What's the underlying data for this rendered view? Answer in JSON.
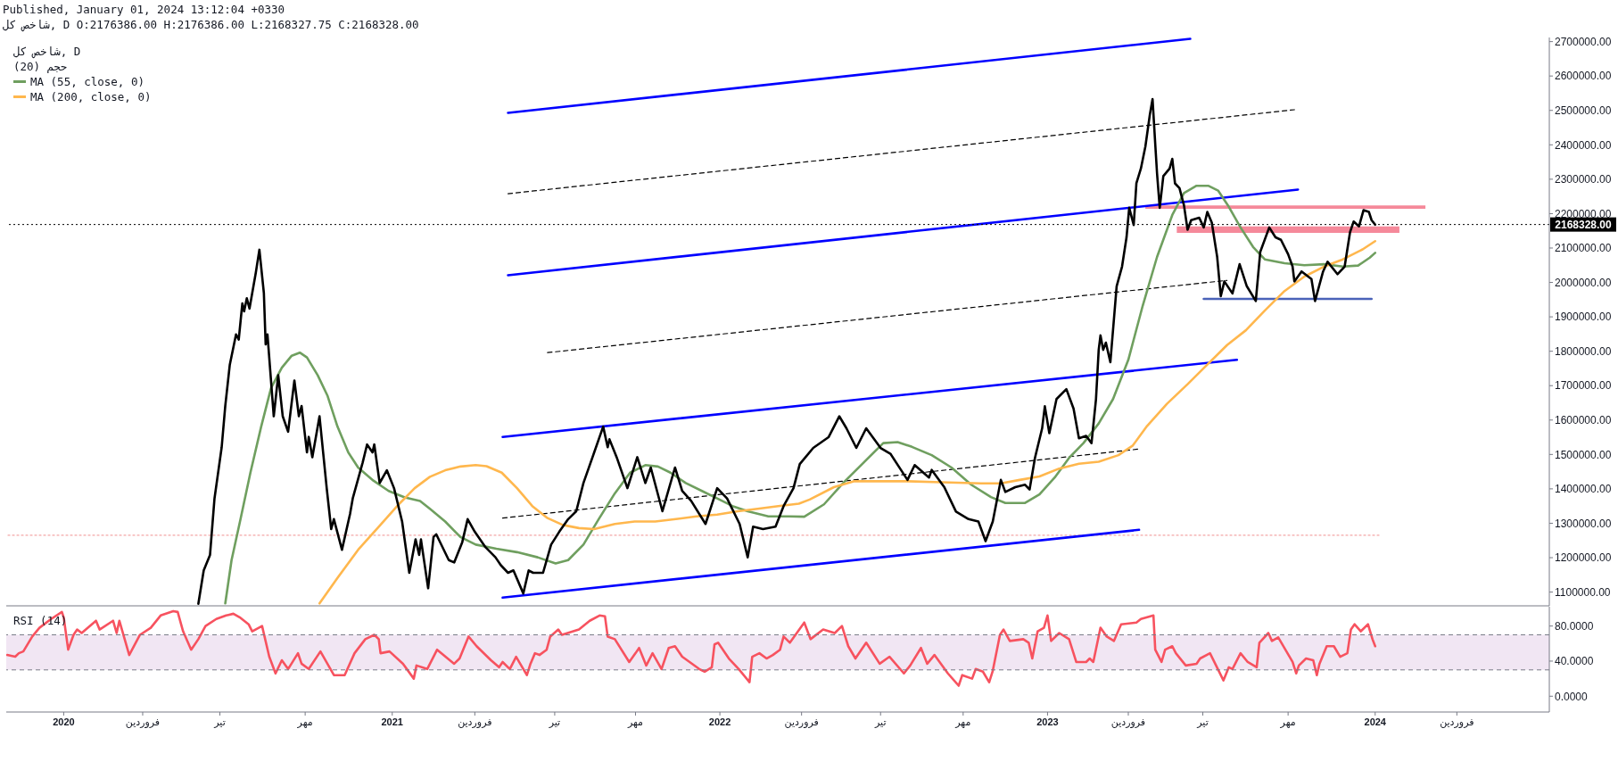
{
  "chart_data": [
    {
      "type": "line",
      "title": "شاخص کل, D",
      "subtitle": "شاخص کل, D O:2176386.00 H:2176386.00 L:2168327.75 C:2168328.00",
      "annotations": [
        "Published, January 01, 2024 13:12:04 +0330",
        "حجم (20)"
      ],
      "xlim": [
        "2019-10-29",
        "2024-07-13"
      ],
      "ylim": [
        1060000,
        2712000
      ],
      "yticks": [
        {
          "value": 1100000,
          "label": "1100000.00"
        },
        {
          "value": 1200000,
          "label": "1200000.00"
        },
        {
          "value": 1300000,
          "label": "1300000.00"
        },
        {
          "value": 1400000,
          "label": "1400000.00"
        },
        {
          "value": 1500000,
          "label": "1500000.00"
        },
        {
          "value": 1600000,
          "label": "1600000.00"
        },
        {
          "value": 1700000,
          "label": "1700000.00"
        },
        {
          "value": 1800000,
          "label": "1800000.00"
        },
        {
          "value": 1900000,
          "label": "1900000.00"
        },
        {
          "value": 2000000,
          "label": "2000000.00"
        },
        {
          "value": 2100000,
          "label": "2100000.00"
        },
        {
          "value": 2200000,
          "label": "2200000.00"
        },
        {
          "value": 2300000,
          "label": "2300000.00"
        },
        {
          "value": 2400000,
          "label": "2400000.00"
        },
        {
          "value": 2500000,
          "label": "2500000.00"
        },
        {
          "value": 2600000,
          "label": "2600000.00"
        },
        {
          "value": 2700000,
          "label": "2700000.00"
        }
      ],
      "tick_labels": "y",
      "legend": "top left",
      "series": [
        {
          "color": "#f5899a",
          "x": [
            "2023-04-20",
            "2024-02-26"
          ],
          "values": [
            null,
            null
          ],
          "lower": [
            2214000,
            2214000
          ],
          "upper": [
            2224000,
            2224000
          ]
        },
        {
          "color": "#f5899a",
          "x": [
            "2023-05-25",
            "2024-01-28"
          ],
          "values": [
            null,
            null
          ],
          "lower": [
            2144000,
            2144000
          ],
          "upper": [
            2163000,
            2163000
          ]
        },
        {
          "color": "#f4a6a6",
          "x": [
            "2019-10-31",
            "2024-01-06"
          ],
          "values": [
            1265000,
            1265000
          ],
          "line_style": "dotted"
        },
        {
          "color": "#000000",
          "x": [
            "2021-05-10",
            "2023-10-03"
          ],
          "values": [
            2258000,
            2502000
          ],
          "line_style": "dashed"
        },
        {
          "color": "#000000",
          "x": [
            "2021-06-23",
            "2023-07-20"
          ],
          "values": [
            1796000,
            2006000
          ],
          "line_style": "dashed"
        },
        {
          "color": "#000000",
          "x": [
            "2021-05-04",
            "2023-04-14"
          ],
          "values": [
            1315000,
            1516000
          ],
          "line_style": "dashed"
        },
        {
          "color": "#0000ff",
          "x": [
            "2021-05-10",
            "2023-06-09"
          ],
          "values": [
            2493000,
            2708000
          ]
        },
        {
          "color": "#0000ff",
          "x": [
            "2021-05-10",
            "2023-10-07"
          ],
          "values": [
            2021000,
            2270000
          ]
        },
        {
          "color": "#0000ff",
          "x": [
            "2021-05-04",
            "2023-07-31"
          ],
          "values": [
            1551000,
            1775000
          ]
        },
        {
          "color": "#0000ff",
          "x": [
            "2021-05-04",
            "2023-04-13"
          ],
          "values": [
            1084000,
            1281000
          ]
        },
        {
          "color": "#4a62b8",
          "x": [
            "2023-06-24",
            "2023-12-28"
          ],
          "values": [
            1952000,
            1952000
          ]
        },
        {
          "name": "MA (55, close, 0)",
          "color": "#6f9f5f",
          "x": [
            "2020-06-29",
            "2020-07-06",
            "2020-07-16",
            "2020-07-27",
            "2020-08-08",
            "2020-08-19",
            "2020-08-31",
            "2020-09-11",
            "2020-09-20",
            "2020-09-28",
            "2020-10-10",
            "2020-10-21",
            "2020-11-01",
            "2020-11-13",
            "2020-11-24",
            "2020-12-11",
            "2020-12-28",
            "2021-01-15",
            "2021-02-01",
            "2021-02-12",
            "2021-03-01",
            "2021-03-18",
            "2021-04-04",
            "2021-04-27",
            "2021-05-20",
            "2021-06-12",
            "2021-07-02",
            "2021-07-16",
            "2021-08-02",
            "2021-08-19",
            "2021-09-06",
            "2021-09-23",
            "2021-10-10",
            "2021-10-24",
            "2021-11-07",
            "2021-11-24",
            "2021-12-12",
            "2021-12-29",
            "2022-01-15",
            "2022-02-01",
            "2022-02-24",
            "2022-03-19",
            "2022-04-05",
            "2022-04-27",
            "2022-05-19",
            "2022-06-10",
            "2022-07-02",
            "2022-07-18",
            "2022-08-03",
            "2022-08-25",
            "2022-09-16",
            "2022-10-08",
            "2022-10-30",
            "2022-11-15",
            "2022-12-07",
            "2022-12-23",
            "2023-01-09",
            "2023-01-25",
            "2023-02-10",
            "2023-02-27",
            "2023-03-15",
            "2023-04-01",
            "2023-04-17",
            "2023-05-03",
            "2023-05-20",
            "2023-06-02",
            "2023-06-16",
            "2023-06-29",
            "2023-07-10",
            "2023-07-21",
            "2023-08-04",
            "2023-08-18",
            "2023-08-31",
            "2023-09-22",
            "2023-10-14",
            "2023-11-05",
            "2023-11-26",
            "2023-12-13",
            "2023-12-26",
            "2024-01-01"
          ],
          "values": [
            1067000,
            1193000,
            1312000,
            1447000,
            1581000,
            1693000,
            1752000,
            1787000,
            1796000,
            1782000,
            1730000,
            1670000,
            1581000,
            1506000,
            1462000,
            1424000,
            1394000,
            1375000,
            1365000,
            1342000,
            1305000,
            1260000,
            1238000,
            1226000,
            1216000,
            1201000,
            1183000,
            1193000,
            1238000,
            1312000,
            1387000,
            1447000,
            1469000,
            1465000,
            1447000,
            1417000,
            1394000,
            1372000,
            1350000,
            1335000,
            1320000,
            1320000,
            1319000,
            1355000,
            1419000,
            1476000,
            1533000,
            1536000,
            1522000,
            1498000,
            1462000,
            1412000,
            1376000,
            1359000,
            1359000,
            1384000,
            1433000,
            1490000,
            1533000,
            1590000,
            1661000,
            1775000,
            1932000,
            2074000,
            2196000,
            2260000,
            2281000,
            2281000,
            2267000,
            2224000,
            2160000,
            2103000,
            2067000,
            2056000,
            2050000,
            2053000,
            2046000,
            2049000,
            2072000,
            2086000
          ]
        },
        {
          "name": "MA (200, close, 0)",
          "color": "#ffb74d",
          "x": [
            "2020-10-12",
            "2020-11-01",
            "2020-11-24",
            "2020-12-17",
            "2021-01-09",
            "2021-01-26",
            "2021-02-12",
            "2021-03-01",
            "2021-03-18",
            "2021-04-04",
            "2021-04-16",
            "2021-05-03",
            "2021-05-20",
            "2021-06-06",
            "2021-06-23",
            "2021-07-10",
            "2021-07-28",
            "2021-08-14",
            "2021-09-06",
            "2021-09-28",
            "2021-10-21",
            "2021-11-13",
            "2021-12-06",
            "2021-12-29",
            "2022-01-21",
            "2022-02-12",
            "2022-03-07",
            "2022-03-30",
            "2022-04-11",
            "2022-05-08",
            "2022-05-30",
            "2022-06-21",
            "2022-07-29",
            "2022-09-05",
            "2022-10-19",
            "2022-11-10",
            "2022-12-01",
            "2022-12-23",
            "2023-01-14",
            "2023-02-05",
            "2023-02-27",
            "2023-03-21",
            "2023-04-06",
            "2023-04-22",
            "2023-05-14",
            "2023-06-06",
            "2023-06-28",
            "2023-07-20",
            "2023-08-10",
            "2023-08-31",
            "2023-09-22",
            "2023-10-14",
            "2023-11-05",
            "2023-11-26",
            "2023-12-18",
            "2024-01-01"
          ],
          "values": [
            1067000,
            1141000,
            1223000,
            1290000,
            1357000,
            1402000,
            1435000,
            1454000,
            1465000,
            1469000,
            1466000,
            1447000,
            1402000,
            1350000,
            1315000,
            1295000,
            1286000,
            1283000,
            1298000,
            1305000,
            1305000,
            1312000,
            1320000,
            1325000,
            1335000,
            1342000,
            1350000,
            1357000,
            1369000,
            1405000,
            1422000,
            1422000,
            1422000,
            1419000,
            1416000,
            1416000,
            1426000,
            1436000,
            1459000,
            1473000,
            1479000,
            1498000,
            1526000,
            1583000,
            1647000,
            1704000,
            1761000,
            1818000,
            1861000,
            1918000,
            1975000,
            2017000,
            2046000,
            2067000,
            2096000,
            2120000
          ]
        },
        {
          "color": "#000000",
          "x": [
            "2020-05-30",
            "2020-06-05",
            "2020-06-12",
            "2020-06-17",
            "2020-06-25",
            "2020-06-29",
            "2020-07-04",
            "2020-07-11",
            "2020-07-14",
            "2020-07-18",
            "2020-07-20",
            "2020-07-23",
            "2020-07-26",
            "2020-08-02",
            "2020-08-06",
            "2020-08-11",
            "2020-08-13",
            "2020-08-15",
            "2020-08-22",
            "2020-08-27",
            "2020-09-01",
            "2020-09-07",
            "2020-09-14",
            "2020-09-19",
            "2020-09-22",
            "2020-09-28",
            "2020-09-30",
            "2020-10-04",
            "2020-10-12",
            "2020-10-20",
            "2020-10-25",
            "2020-10-28",
            "2020-11-06",
            "2020-11-15",
            "2020-11-18",
            "2020-11-29",
            "2020-12-04",
            "2020-12-10",
            "2020-12-12",
            "2020-12-18",
            "2020-12-26",
            "2021-01-03",
            "2021-01-12",
            "2021-01-20",
            "2021-01-27",
            "2021-01-31",
            "2021-02-02",
            "2021-02-10",
            "2021-02-16",
            "2021-02-19",
            "2021-03-05",
            "2021-03-11",
            "2021-03-20",
            "2021-03-26",
            "2021-04-03",
            "2021-04-15",
            "2021-04-26",
            "2021-05-02",
            "2021-05-10",
            "2021-05-16",
            "2021-05-27",
            "2021-06-02",
            "2021-06-07",
            "2021-06-18",
            "2021-06-27",
            "2021-07-06",
            "2021-07-16",
            "2021-07-25",
            "2021-08-02",
            "2021-08-14",
            "2021-08-24",
            "2021-08-29",
            "2021-08-31",
            "2021-09-08",
            "2021-09-20",
            "2021-10-01",
            "2021-10-10",
            "2021-10-16",
            "2021-10-29",
            "2021-11-12",
            "2021-11-20",
            "2021-11-30",
            "2021-12-16",
            "2021-12-29",
            "2022-01-09",
            "2022-01-23",
            "2022-02-01",
            "2022-02-07",
            "2022-02-18",
            "2022-03-04",
            "2022-03-13",
            "2022-03-24",
            "2022-03-31",
            "2022-04-15",
            "2022-05-02",
            "2022-05-14",
            "2022-05-22",
            "2022-06-02",
            "2022-06-13",
            "2022-06-29",
            "2022-07-10",
            "2022-07-29",
            "2022-08-06",
            "2022-08-22",
            "2022-08-25",
            "2022-09-08",
            "2022-09-21",
            "2022-10-05",
            "2022-10-16",
            "2022-10-24",
            "2022-11-01",
            "2022-11-10",
            "2022-11-15",
            "2022-11-26",
            "2022-12-07",
            "2022-12-12",
            "2022-12-18",
            "2022-12-26",
            "2022-12-29",
            "2023-01-03",
            "2023-01-11",
            "2023-01-22",
            "2023-01-30",
            "2023-02-05",
            "2023-02-13",
            "2023-02-19",
            "2023-02-24",
            "2023-02-27",
            "2023-03-01",
            "2023-03-04",
            "2023-03-07",
            "2023-03-12",
            "2023-03-19",
            "2023-03-25",
            "2023-03-30",
            "2023-04-02",
            "2023-04-07",
            "2023-04-10",
            "2023-04-15",
            "2023-04-20",
            "2023-04-25",
            "2023-04-28",
            "2023-05-01",
            "2023-05-03",
            "2023-05-06",
            "2023-05-10",
            "2023-05-17",
            "2023-05-20",
            "2023-05-23",
            "2023-05-28",
            "2023-06-02",
            "2023-06-06",
            "2023-06-10",
            "2023-06-19",
            "2023-06-24",
            "2023-06-28",
            "2023-07-03",
            "2023-07-09",
            "2023-07-13",
            "2023-07-17",
            "2023-07-26",
            "2023-08-03",
            "2023-08-11",
            "2023-08-21",
            "2023-08-26",
            "2023-09-05",
            "2023-09-12",
            "2023-09-18",
            "2023-09-26",
            "2023-10-01",
            "2023-10-03",
            "2023-10-11",
            "2023-10-22",
            "2023-10-26",
            "2023-11-04",
            "2023-11-09",
            "2023-11-20",
            "2023-11-28",
            "2023-12-04",
            "2023-12-08",
            "2023-12-14",
            "2023-12-19",
            "2023-12-25",
            "2023-12-28",
            "2024-01-01"
          ],
          "values": [
            1066000,
            1163000,
            1208000,
            1372000,
            1521000,
            1641000,
            1760000,
            1849000,
            1834000,
            1939000,
            1916000,
            1954000,
            1924000,
            2028000,
            2095000,
            1969000,
            1820000,
            1849000,
            1611000,
            1730000,
            1611000,
            1566000,
            1715000,
            1611000,
            1641000,
            1506000,
            1551000,
            1492000,
            1611000,
            1402000,
            1283000,
            1312000,
            1223000,
            1327000,
            1372000,
            1476000,
            1529000,
            1506000,
            1529000,
            1417000,
            1454000,
            1402000,
            1305000,
            1156000,
            1253000,
            1208000,
            1253000,
            1111000,
            1260000,
            1268000,
            1193000,
            1186000,
            1245000,
            1312000,
            1275000,
            1230000,
            1201000,
            1178000,
            1156000,
            1163000,
            1096000,
            1163000,
            1156000,
            1156000,
            1238000,
            1275000,
            1312000,
            1335000,
            1417000,
            1506000,
            1581000,
            1521000,
            1544000,
            1492000,
            1402000,
            1492000,
            1417000,
            1462000,
            1335000,
            1462000,
            1394000,
            1365000,
            1298000,
            1402000,
            1372000,
            1298000,
            1201000,
            1290000,
            1283000,
            1290000,
            1350000,
            1402000,
            1472000,
            1519000,
            1550000,
            1611000,
            1576000,
            1519000,
            1576000,
            1519000,
            1502000,
            1426000,
            1469000,
            1433000,
            1455000,
            1405000,
            1334000,
            1312000,
            1305000,
            1248000,
            1305000,
            1426000,
            1391000,
            1405000,
            1412000,
            1398000,
            1490000,
            1576000,
            1640000,
            1562000,
            1661000,
            1690000,
            1633000,
            1547000,
            1554000,
            1533000,
            1661000,
            1804000,
            1846000,
            1804000,
            1825000,
            1768000,
            1989000,
            2046000,
            2131000,
            2217000,
            2167000,
            2288000,
            2331000,
            2395000,
            2488000,
            2533000,
            2402000,
            2317000,
            2217000,
            2309000,
            2331000,
            2359000,
            2288000,
            2274000,
            2224000,
            2153000,
            2181000,
            2188000,
            2160000,
            2205000,
            2174000,
            2074000,
            1960000,
            2003000,
            1968000,
            2053000,
            1989000,
            1946000,
            2089000,
            2160000,
            2131000,
            2124000,
            2082000,
            2046000,
            2003000,
            2032000,
            2010000,
            1946000,
            2032000,
            2060000,
            2024000,
            2046000,
            2146000,
            2177000,
            2163000,
            2210000,
            2205000,
            2181000,
            2168000
          ]
        }
      ],
      "ref_lines": [
        {
          "axis": "y",
          "value": 2168328,
          "label": "2168328.00",
          "color": "#000000",
          "line_style": "dotted"
        }
      ]
    },
    {
      "type": "line",
      "title": "RSI (14)",
      "xlim": [
        "2019-10-29",
        "2024-07-13"
      ],
      "xticks": [
        {
          "value": "2020-01-01",
          "label": "2020"
        },
        {
          "value": "2020-03-29",
          "label": "فروردین"
        },
        {
          "value": "2020-06-23",
          "label": "تیر"
        },
        {
          "value": "2020-09-26",
          "label": "مهر"
        },
        {
          "value": "2021-01-01",
          "label": "2021"
        },
        {
          "value": "2021-04-03",
          "label": "فروردین"
        },
        {
          "value": "2021-07-01",
          "label": "تیر"
        },
        {
          "value": "2021-09-29",
          "label": "مهر"
        },
        {
          "value": "2022-01-01",
          "label": "2022"
        },
        {
          "value": "2022-04-02",
          "label": "فروردین"
        },
        {
          "value": "2022-06-29",
          "label": "تیر"
        },
        {
          "value": "2022-09-29",
          "label": "مهر"
        },
        {
          "value": "2023-01-01",
          "label": "2023"
        },
        {
          "value": "2023-04-01",
          "label": "فروردین"
        },
        {
          "value": "2023-06-23",
          "label": "تیر"
        },
        {
          "value": "2023-09-26",
          "label": "مهر"
        },
        {
          "value": "2024-01-01",
          "label": "2024"
        },
        {
          "value": "2024-04-01",
          "label": "فروردین"
        }
      ],
      "ylim": [
        -18,
        102
      ],
      "yticks": [
        {
          "value": 80,
          "label": "80.0000"
        },
        {
          "value": 40,
          "label": "40.0000"
        },
        {
          "value": 0,
          "label": "0.0000"
        }
      ],
      "series": [
        {
          "color": "#f7525f",
          "x": [
            "2019-10-30",
            "2019-11-08",
            "2019-11-12",
            "2019-11-17",
            "2019-11-27",
            "2019-12-05",
            "2019-12-18",
            "2019-12-30",
            "2020-01-01",
            "2020-01-06",
            "2020-01-12",
            "2020-01-16",
            "2020-01-21",
            "2020-02-06",
            "2020-02-10",
            "2020-02-25",
            "2020-02-29",
            "2020-03-03",
            "2020-03-14",
            "2020-03-26",
            "2020-04-07",
            "2020-04-18",
            "2020-05-02",
            "2020-05-07",
            "2020-05-13",
            "2020-05-22",
            "2020-05-30",
            "2020-06-07",
            "2020-06-19",
            "2020-06-30",
            "2020-07-08",
            "2020-07-15",
            "2020-07-25",
            "2020-07-29",
            "2020-08-09",
            "2020-08-17",
            "2020-08-24",
            "2020-08-31",
            "2020-09-07",
            "2020-09-18",
            "2020-09-22",
            "2020-09-30",
            "2020-10-13",
            "2020-10-28",
            "2020-11-09",
            "2020-11-20",
            "2020-12-02",
            "2020-12-12",
            "2020-12-17",
            "2020-12-19",
            "2020-12-29",
            "2021-01-13",
            "2021-01-25",
            "2021-01-28",
            "2021-02-09",
            "2021-02-20",
            "2021-03-11",
            "2021-03-17",
            "2021-03-27",
            "2021-04-05",
            "2021-04-21",
            "2021-04-30",
            "2021-05-04",
            "2021-05-12",
            "2021-05-19",
            "2021-05-31",
            "2021-06-04",
            "2021-06-09",
            "2021-06-14",
            "2021-06-22",
            "2021-06-26",
            "2021-07-05",
            "2021-07-09",
            "2021-07-28",
            "2021-08-09",
            "2021-08-20",
            "2021-08-26",
            "2021-08-29",
            "2021-09-06",
            "2021-09-22",
            "2021-09-29",
            "2021-10-03",
            "2021-10-11",
            "2021-10-18",
            "2021-10-28",
            "2021-11-05",
            "2021-11-12",
            "2021-11-20",
            "2021-12-09",
            "2021-12-15",
            "2021-12-23",
            "2021-12-26",
            "2021-12-30",
            "2022-01-11",
            "2022-01-22",
            "2022-02-03",
            "2022-02-06",
            "2022-02-14",
            "2022-02-22",
            "2022-03-01",
            "2022-03-09",
            "2022-03-13",
            "2022-03-20",
            "2022-04-05",
            "2022-04-12",
            "2022-04-26",
            "2022-05-09",
            "2022-05-17",
            "2022-05-24",
            "2022-06-01",
            "2022-06-13",
            "2022-06-28",
            "2022-07-09",
            "2022-07-25",
            "2022-08-01",
            "2022-08-13",
            "2022-08-20",
            "2022-08-28",
            "2022-09-12",
            "2022-09-24",
            "2022-09-28",
            "2022-10-09",
            "2022-10-13",
            "2022-10-21",
            "2022-10-28",
            "2022-11-01",
            "2022-11-09",
            "2022-11-13",
            "2022-11-20",
            "2022-12-05",
            "2022-12-11",
            "2022-12-15",
            "2022-12-21",
            "2022-12-28",
            "2023-01-01",
            "2023-01-05",
            "2023-01-14",
            "2023-01-25",
            "2023-02-02",
            "2023-02-13",
            "2023-02-17",
            "2023-02-21",
            "2023-03-01",
            "2023-03-08",
            "2023-03-16",
            "2023-03-24",
            "2023-04-10",
            "2023-04-15",
            "2023-04-29",
            "2023-05-01",
            "2023-05-08",
            "2023-05-12",
            "2023-05-20",
            "2023-05-24",
            "2023-06-04",
            "2023-06-16",
            "2023-06-20",
            "2023-07-01",
            "2023-07-16",
            "2023-07-22",
            "2023-07-26",
            "2023-08-04",
            "2023-08-12",
            "2023-08-22",
            "2023-08-25",
            "2023-09-04",
            "2023-09-08",
            "2023-09-15",
            "2023-09-23",
            "2023-10-01",
            "2023-10-05",
            "2023-10-08",
            "2023-10-16",
            "2023-10-24",
            "2023-10-28",
            "2023-10-31",
            "2023-11-08",
            "2023-11-16",
            "2023-11-23",
            "2023-12-01",
            "2023-12-05",
            "2023-12-09",
            "2023-12-16",
            "2023-12-24",
            "2023-12-29",
            "2024-01-01"
          ],
          "values": [
            47,
            45,
            49,
            51,
            68,
            78,
            88,
            96,
            90,
            53,
            70,
            76,
            72,
            86,
            76,
            86,
            72,
            86,
            47,
            70,
            78,
            92,
            97,
            96,
            74,
            53,
            65,
            80,
            88,
            92,
            94,
            90,
            82,
            74,
            80,
            45,
            26,
            41,
            31,
            49,
            37,
            31,
            51,
            24,
            24,
            49,
            65,
            70,
            65,
            49,
            51,
            37,
            20,
            35,
            31,
            53,
            37,
            43,
            68,
            57,
            41,
            33,
            39,
            31,
            45,
            24,
            37,
            49,
            47,
            53,
            68,
            76,
            70,
            76,
            86,
            92,
            91,
            68,
            65,
            39,
            49,
            55,
            35,
            49,
            31,
            55,
            57,
            45,
            31,
            28,
            33,
            59,
            61,
            43,
            31,
            16,
            45,
            49,
            43,
            47,
            53,
            68,
            61,
            84,
            65,
            76,
            72,
            80,
            57,
            43,
            61,
            37,
            45,
            26,
            35,
            55,
            37,
            47,
            26,
            12,
            24,
            20,
            31,
            28,
            16,
            29,
            70,
            76,
            63,
            65,
            61,
            43,
            74,
            78,
            92,
            63,
            72,
            65,
            39,
            39,
            43,
            39,
            78,
            68,
            63,
            82,
            84,
            88,
            92,
            53,
            39,
            53,
            57,
            49,
            35,
            37,
            43,
            49,
            18,
            33,
            31,
            49,
            39,
            33,
            61,
            72,
            63,
            67,
            53,
            39,
            26,
            35,
            43,
            41,
            24,
            37,
            57,
            57,
            45,
            49,
            76,
            82,
            74,
            82,
            65,
            57
          ]
        }
      ],
      "bands": [
        {
          "axis": "y",
          "from": 30,
          "to": 70,
          "color": "#f1e6f3"
        }
      ],
      "ref_lines": [
        {
          "axis": "y",
          "value": 70,
          "color": "#787b86",
          "line_style": "dashed"
        },
        {
          "axis": "y",
          "value": 30,
          "color": "#787b86",
          "line_style": "dashed"
        }
      ]
    }
  ]
}
